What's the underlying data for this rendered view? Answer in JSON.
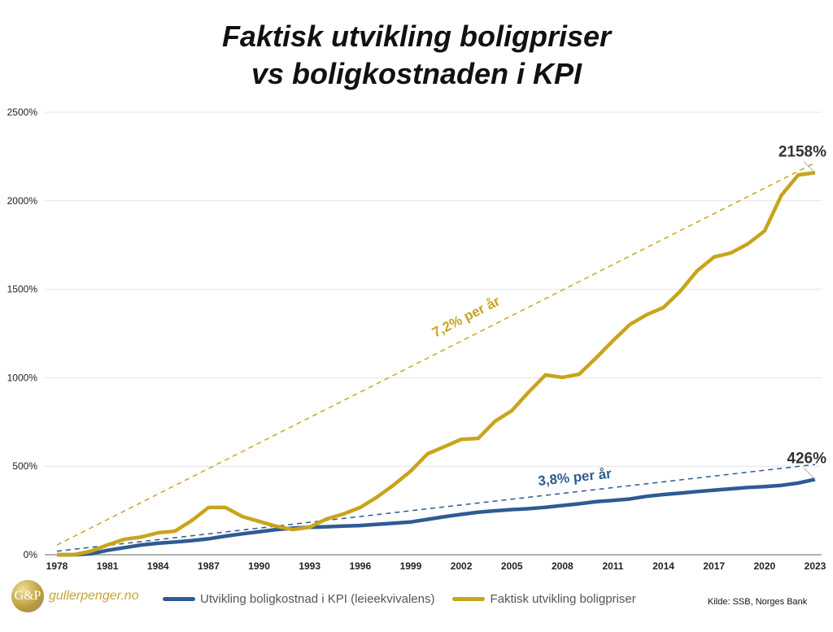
{
  "title_line1": "Faktisk utvikling boligpriser",
  "title_line2": "vs boligkostnaden i KPI",
  "logo": {
    "mark": "G&P",
    "text": "gullerpenger.no"
  },
  "source": "Kilde: SSB, Norges Bank",
  "chart_data": {
    "type": "line",
    "title": "Faktisk utvikling boligpriser vs boligkostnaden i KPI",
    "x": [
      1978,
      1979,
      1980,
      1981,
      1982,
      1983,
      1984,
      1985,
      1986,
      1987,
      1988,
      1989,
      1990,
      1991,
      1992,
      1993,
      1994,
      1995,
      1996,
      1997,
      1998,
      1999,
      2000,
      2001,
      2002,
      2003,
      2004,
      2005,
      2006,
      2007,
      2008,
      2009,
      2010,
      2011,
      2012,
      2013,
      2014,
      2015,
      2016,
      2017,
      2018,
      2019,
      2020,
      2021,
      2022,
      2023
    ],
    "xticks": [
      "1978",
      "1981",
      "1984",
      "1987",
      "1990",
      "1993",
      "1996",
      "1999",
      "2002",
      "2005",
      "2008",
      "2011",
      "2014",
      "2017",
      "2020",
      "2023"
    ],
    "yticks": [
      "0%",
      "500%",
      "1000%",
      "1500%",
      "2000%",
      "2500%"
    ],
    "ylim": [
      0,
      2500
    ],
    "grid": true,
    "legend_placement": "bottom",
    "series": [
      {
        "name": "Utvikling boligkostnad i KPI (leieekvivalens)",
        "color": "#2f5b93",
        "values": [
          0,
          0,
          5,
          25,
          40,
          55,
          65,
          72,
          80,
          90,
          105,
          118,
          130,
          142,
          150,
          155,
          158,
          162,
          165,
          172,
          178,
          185,
          200,
          215,
          228,
          240,
          248,
          255,
          260,
          268,
          278,
          288,
          300,
          307,
          315,
          330,
          340,
          348,
          357,
          365,
          372,
          380,
          385,
          392,
          405,
          426
        ],
        "end_label": "426%",
        "trend": {
          "start": 20,
          "end": 510,
          "label": "3,8% per år"
        }
      },
      {
        "name": "Faktisk utvikling boligpriser",
        "color": "#c9a41c",
        "values": [
          0,
          0,
          20,
          55,
          87,
          100,
          124,
          133,
          193,
          267,
          267,
          216,
          188,
          161,
          142,
          156,
          202,
          230,
          267,
          326,
          395,
          473,
          570,
          611,
          652,
          657,
          754,
          814,
          919,
          1016,
          1002,
          1020,
          1112,
          1209,
          1300,
          1356,
          1397,
          1489,
          1604,
          1682,
          1705,
          1756,
          1829,
          2031,
          2146,
          2158
        ],
        "end_label": "2158%",
        "trend": {
          "start": 55,
          "end": 2215,
          "label": "7,2% per år"
        }
      }
    ]
  }
}
